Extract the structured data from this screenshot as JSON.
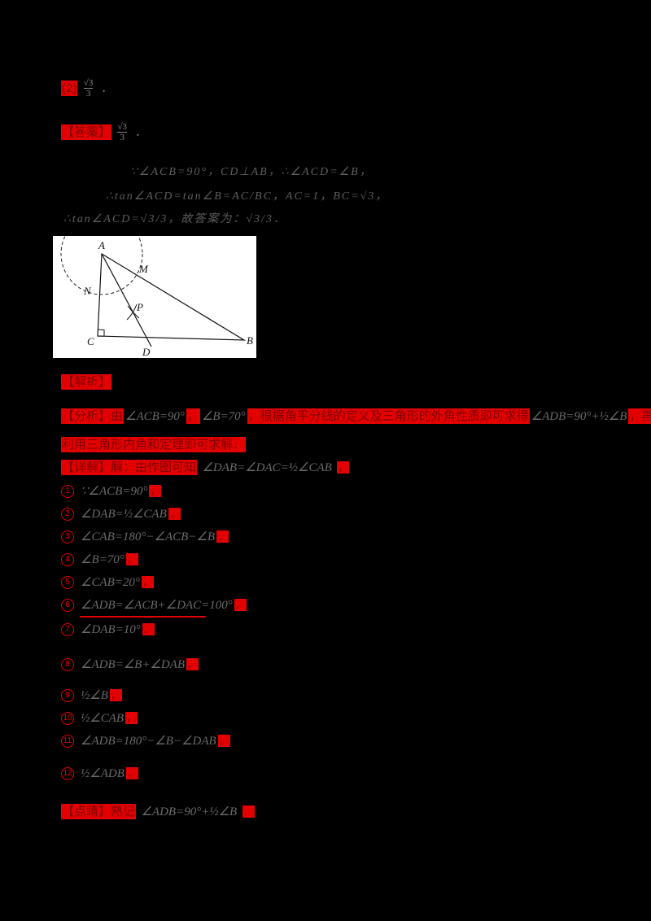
{
  "colors": {
    "background": "#000000",
    "highlight_red": "#e30000",
    "figure_background": "#ffffff",
    "faint_text": "#6a6a6a"
  },
  "answers": {
    "a1": {
      "tag": "(2)",
      "num": "√3",
      "den": "3",
      "tail": "．"
    },
    "a2": {
      "tag": "【答案】",
      "num": "√3",
      "den": "3",
      "tail": "．"
    }
  },
  "solution_lines": {
    "l1": "∵∠ACB=90°，CD⊥AB，∴∠ACD=∠B，",
    "l2": "∴tan∠ACD=tan∠B=AC/BC，AC=1，BC=√3，",
    "l3": "∴tan∠ACD=√3/3，故答案为：√3/3．"
  },
  "figure": {
    "labels": {
      "A": "A",
      "B": "B",
      "C": "C",
      "D": "D",
      "M": "M",
      "N": "N",
      "P": "P"
    }
  },
  "section": {
    "tag": "【解析】"
  },
  "analysis": {
    "line1": [
      {
        "t": "【分析】由",
        "hl": true
      },
      {
        "t": "∠ACB=90°",
        "hl": false
      },
      {
        "t": "，",
        "hl": true
      },
      {
        "t": "∠B=70°",
        "hl": false
      },
      {
        "t": "，根据角平分线的定义及三角形的外角性质即可求得",
        "hl": true
      },
      {
        "t": "∠ADB=90°+½∠B",
        "hl": false
      },
      {
        "t": "，再",
        "hl": true
      }
    ],
    "line2": "利用三角形内角和定理即可求解．"
  },
  "detail": {
    "tag": "【详解】解：由作图可知",
    "math": "∠DAB=∠DAC=½∠CAB",
    "tail": "，"
  },
  "items": [
    {
      "n": "1",
      "math": "∵∠ACB=90°",
      "tail": "，"
    },
    {
      "n": "2",
      "math": "∠DAB=½∠CAB",
      "tail": "，"
    },
    {
      "n": "3",
      "math": "∠CAB=180°−∠ACB−∠B",
      "tail": "，"
    },
    {
      "n": "4",
      "math": "∠B=70°",
      "tail": "，"
    },
    {
      "n": "5",
      "math": "∠CAB=20°",
      "tail": "，"
    },
    {
      "n": "6",
      "math": "∠ADB=∠ACB+∠DAC=100°",
      "tail": "，"
    },
    {
      "n": "7",
      "math": "∠DAB=10°",
      "tail": "．"
    },
    {
      "n": "8",
      "math": "∠ADB=∠B+∠DAB",
      "tail": "，"
    },
    {
      "n": "9",
      "math": "½∠B",
      "tail": "，"
    },
    {
      "n": "10",
      "math": "½∠CAB",
      "tail": "，"
    },
    {
      "n": "11",
      "math": "∠ADB=180°−∠B−∠DAB",
      "tail": "，"
    },
    {
      "n": "12",
      "math": "½∠ADB",
      "tail": "，"
    }
  ],
  "footer": {
    "tag": "【点睛】熟记",
    "math": "∠ADB=90°+½∠B",
    "tail": "．"
  }
}
